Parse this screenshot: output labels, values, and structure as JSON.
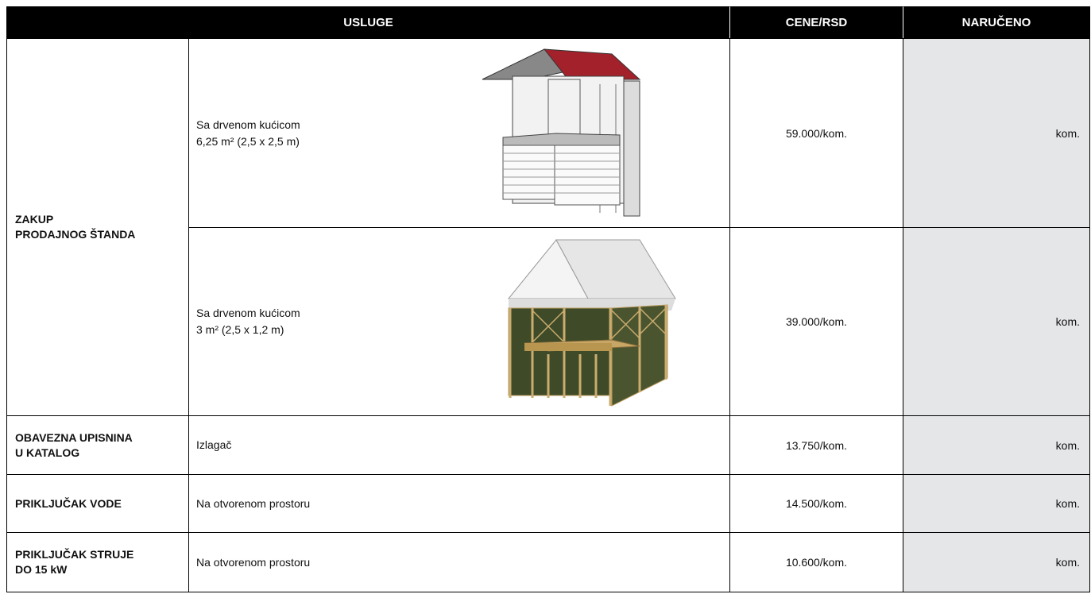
{
  "table": {
    "header": [
      "USLUGE",
      "CENE/RSD",
      "NARUČENO"
    ],
    "rows": [
      {
        "service": [
          "ZAKUP",
          "PRODAJNOG ŠTANDA"
        ],
        "items": [
          {
            "description": [
              "Sa drvenom kućicom",
              "6,25 m² (2,5 x 2,5 m)"
            ],
            "price": "59.000/kom.",
            "ordered": "kom."
          },
          {
            "description": [
              "Sa drvenom kućicom",
              "3 m² (2,5 x 1,2 m)"
            ],
            "price": "39.000/kom.",
            "ordered": "kom."
          }
        ]
      },
      {
        "service": [
          "OBAVEZNA UPISNINA",
          "U KATALOG"
        ],
        "items": [
          {
            "description": [
              "Izlagač"
            ],
            "price": "13.750/kom.",
            "ordered": "kom."
          }
        ]
      },
      {
        "service": [
          "PRIKLJUČAK VODE"
        ],
        "items": [
          {
            "description": [
              "Na otvorenom prostoru"
            ],
            "price": "14.500/kom.",
            "ordered": "kom."
          }
        ]
      },
      {
        "service": [
          "PRIKLJUČAK STRUJE",
          "DO 15 kW"
        ],
        "items": [
          {
            "description": [
              "Na otvorenom prostoru"
            ],
            "price": "10.600/kom.",
            "ordered": "kom."
          }
        ]
      }
    ]
  }
}
